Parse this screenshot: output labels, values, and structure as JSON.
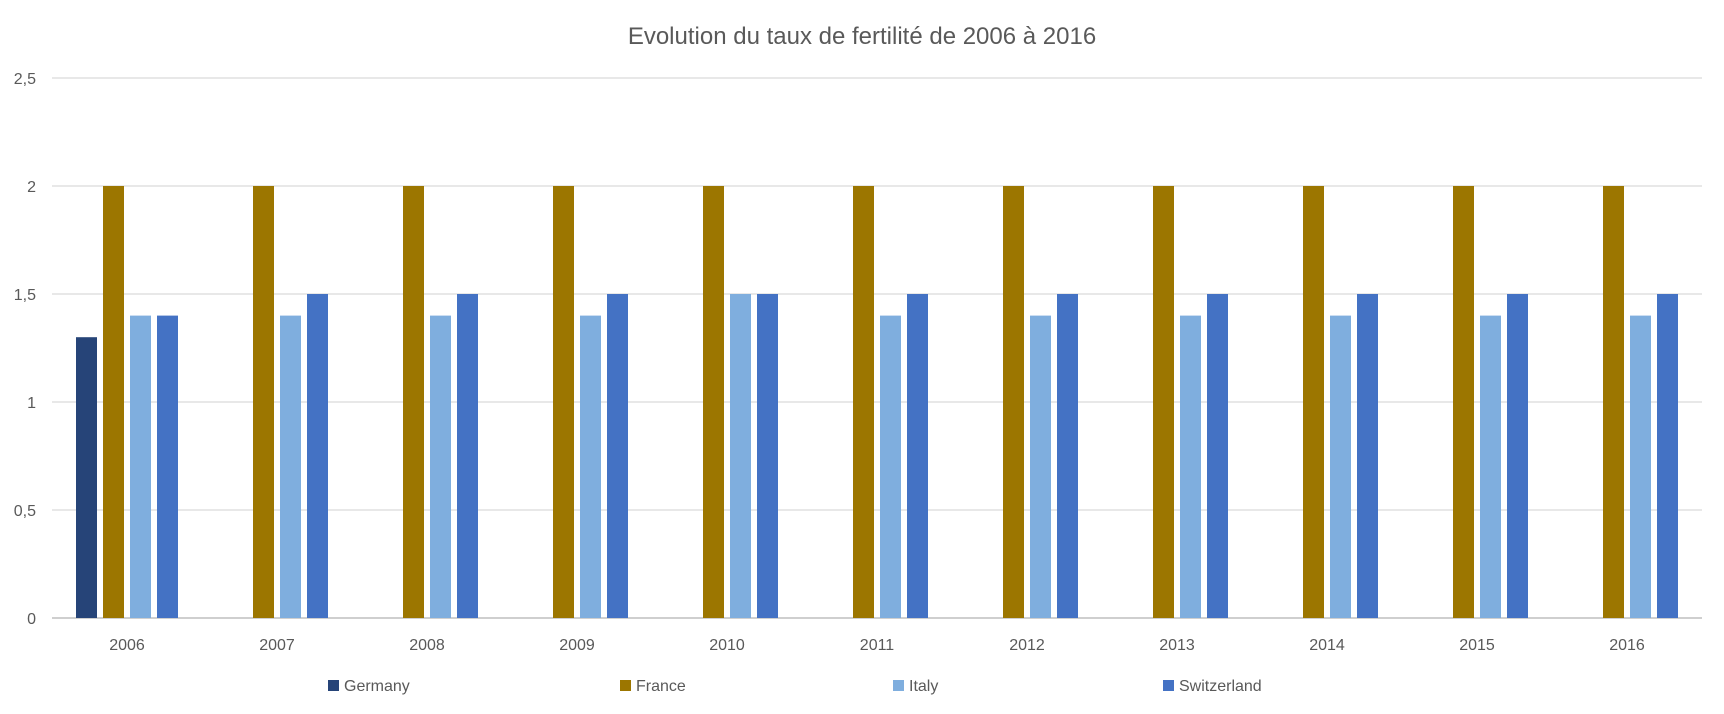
{
  "chart_data": {
    "type": "bar",
    "title": "Evolution du taux de fertilité de 2006 à 2016",
    "xlabel": "",
    "ylabel": "",
    "categories": [
      "2006",
      "2007",
      "2008",
      "2009",
      "2010",
      "2011",
      "2012",
      "2013",
      "2014",
      "2015",
      "2016"
    ],
    "ylim": [
      0,
      2.5
    ],
    "y_ticks": [
      {
        "value": 0,
        "label": "0"
      },
      {
        "value": 0.5,
        "label": "0,5"
      },
      {
        "value": 1,
        "label": "1"
      },
      {
        "value": 1.5,
        "label": "1,5"
      },
      {
        "value": 2,
        "label": "2"
      },
      {
        "value": 2.5,
        "label": "2,5"
      }
    ],
    "grid": true,
    "legend_position": "bottom",
    "series": [
      {
        "name": "Germany",
        "color": "#264478",
        "values": [
          1.3,
          null,
          null,
          null,
          null,
          null,
          null,
          null,
          null,
          null,
          null
        ]
      },
      {
        "name": "France",
        "color": "#9C7600",
        "values": [
          2,
          2,
          2,
          2,
          2,
          2,
          2,
          2,
          2,
          2,
          2
        ]
      },
      {
        "name": "Italy",
        "color": "#7FAEDE",
        "values": [
          1.4,
          1.4,
          1.4,
          1.4,
          1.5,
          1.4,
          1.4,
          1.4,
          1.4,
          1.4,
          1.4
        ]
      },
      {
        "name": "Switzerland",
        "color": "#4472C4",
        "values": [
          1.4,
          1.5,
          1.5,
          1.5,
          1.5,
          1.5,
          1.5,
          1.5,
          1.5,
          1.5,
          1.5
        ]
      }
    ]
  }
}
